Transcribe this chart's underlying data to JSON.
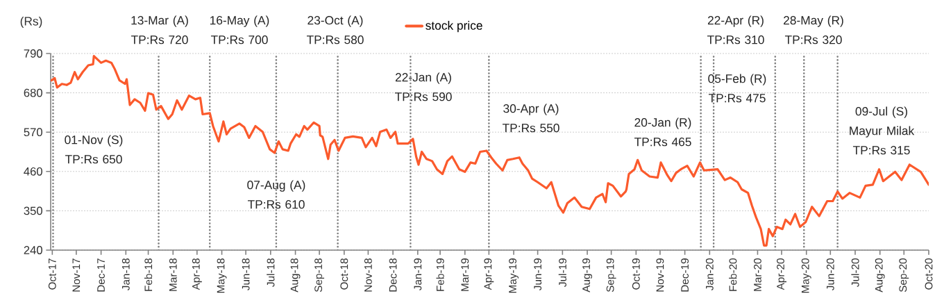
{
  "chart_data": {
    "type": "line",
    "ylabel": "(Rs)",
    "xlim": [
      "2017-10-29",
      "2020-10-31"
    ],
    "xticks": [
      {
        "value": "2017-10-31",
        "label": "Oct-17"
      },
      {
        "value": "2017-11-30",
        "label": "Nov-17"
      },
      {
        "value": "2017-12-31",
        "label": "Dec-17"
      },
      {
        "value": "2018-01-31",
        "label": "Jan-18"
      },
      {
        "value": "2018-02-28",
        "label": "Feb-18"
      },
      {
        "value": "2018-03-31",
        "label": "Mar-18"
      },
      {
        "value": "2018-04-30",
        "label": "Apr-18"
      },
      {
        "value": "2018-05-31",
        "label": "May-18"
      },
      {
        "value": "2018-06-30",
        "label": "Jun-18"
      },
      {
        "value": "2018-07-31",
        "label": "Jul-18"
      },
      {
        "value": "2018-08-31",
        "label": "Aug-18"
      },
      {
        "value": "2018-09-30",
        "label": "Sep-18"
      },
      {
        "value": "2018-10-31",
        "label": "Oct-18"
      },
      {
        "value": "2018-11-30",
        "label": "Nov-18"
      },
      {
        "value": "2018-12-31",
        "label": "Dec-18"
      },
      {
        "value": "2019-01-31",
        "label": "Jan-19"
      },
      {
        "value": "2019-02-28",
        "label": "Feb-19"
      },
      {
        "value": "2019-03-31",
        "label": "Mar-19"
      },
      {
        "value": "2019-04-30",
        "label": "Apr-19"
      },
      {
        "value": "2019-05-31",
        "label": "May-19"
      },
      {
        "value": "2019-06-30",
        "label": "Jun-19"
      },
      {
        "value": "2019-07-31",
        "label": "Jul-19"
      },
      {
        "value": "2019-08-31",
        "label": "Aug-19"
      },
      {
        "value": "2019-09-30",
        "label": "Sep-19"
      },
      {
        "value": "2019-10-31",
        "label": "Oct-19"
      },
      {
        "value": "2019-11-30",
        "label": "Nov-19"
      },
      {
        "value": "2019-12-31",
        "label": "Dec-19"
      },
      {
        "value": "2020-01-31",
        "label": "Jan-20"
      },
      {
        "value": "2020-02-29",
        "label": "Feb-20"
      },
      {
        "value": "2020-03-31",
        "label": "Mar-20"
      },
      {
        "value": "2020-04-30",
        "label": "Apr-20"
      },
      {
        "value": "2020-05-31",
        "label": "May-20"
      },
      {
        "value": "2020-06-30",
        "label": "Jun-20"
      },
      {
        "value": "2020-07-31",
        "label": "Jul-20"
      },
      {
        "value": "2020-08-31",
        "label": "Aug-20"
      },
      {
        "value": "2020-09-30",
        "label": "Sep-20"
      },
      {
        "value": "2020-10-31",
        "label": "Oct-20"
      }
    ],
    "ylim": [
      240,
      790
    ],
    "yticks": [
      240,
      350,
      460,
      570,
      680,
      790
    ],
    "grid": "y",
    "legend": "top",
    "x": [
      "2017-10-30",
      "2017-11-03",
      "2017-11-06",
      "2017-11-12",
      "2017-11-18",
      "2017-11-23",
      "2017-11-28",
      "2017-12-02",
      "2017-12-08",
      "2017-12-15",
      "2017-12-21",
      "2017-12-22",
      "2017-12-31",
      "2018-01-06",
      "2018-01-13",
      "2018-01-17",
      "2018-01-23",
      "2018-01-30",
      "2018-02-01",
      "2018-02-05",
      "2018-02-11",
      "2018-02-18",
      "2018-02-24",
      "2018-02-28",
      "2018-03-06",
      "2018-03-10",
      "2018-03-16",
      "2018-03-25",
      "2018-03-30",
      "2018-04-05",
      "2018-04-11",
      "2018-04-20",
      "2018-04-28",
      "2018-05-04",
      "2018-05-07",
      "2018-05-16",
      "2018-05-20",
      "2018-05-27",
      "2018-06-02",
      "2018-06-06",
      "2018-06-11",
      "2018-06-22",
      "2018-06-28",
      "2018-07-04",
      "2018-07-12",
      "2018-07-21",
      "2018-07-30",
      "2018-08-05",
      "2018-08-10",
      "2018-08-15",
      "2018-08-22",
      "2018-08-25",
      "2018-09-01",
      "2018-09-05",
      "2018-09-11",
      "2018-09-15",
      "2018-09-23",
      "2018-09-30",
      "2018-10-01",
      "2018-10-04",
      "2018-10-11",
      "2018-10-14",
      "2018-10-19",
      "2018-10-24",
      "2018-11-01",
      "2018-11-11",
      "2018-11-22",
      "2018-11-27",
      "2018-12-05",
      "2018-12-10",
      "2018-12-15",
      "2018-12-23",
      "2018-12-28",
      "2019-01-03",
      "2019-01-06",
      "2019-01-19",
      "2019-01-25",
      "2019-01-29",
      "2019-02-01",
      "2019-02-05",
      "2019-02-11",
      "2019-02-18",
      "2019-02-24",
      "2019-03-03",
      "2019-03-09",
      "2019-03-15",
      "2019-03-24",
      "2019-03-31",
      "2019-04-07",
      "2019-04-13",
      "2019-04-19",
      "2019-04-27",
      "2019-05-03",
      "2019-05-09",
      "2019-05-17",
      "2019-05-23",
      "2019-05-30",
      "2019-06-07",
      "2019-06-11",
      "2019-06-18",
      "2019-06-23",
      "2019-06-30",
      "2019-07-11",
      "2019-07-17",
      "2019-07-26",
      "2019-08-01",
      "2019-08-06",
      "2019-08-15",
      "2019-08-24",
      "2019-09-03",
      "2019-09-11",
      "2019-09-19",
      "2019-09-23",
      "2019-09-26",
      "2019-10-02",
      "2019-10-12",
      "2019-10-18",
      "2019-10-19",
      "2019-10-22",
      "2019-10-29",
      "2019-11-02",
      "2019-11-07",
      "2019-11-17",
      "2019-11-27",
      "2019-12-01",
      "2019-12-09",
      "2019-12-14",
      "2019-12-20",
      "2019-12-26",
      "2020-01-03",
      "2020-01-11",
      "2020-01-19",
      "2020-01-24",
      "2020-02-10",
      "2020-02-19",
      "2020-02-26",
      "2020-03-06",
      "2020-03-11",
      "2020-03-19",
      "2020-03-24",
      "2020-03-29",
      "2020-04-04",
      "2020-04-08",
      "2020-04-11",
      "2020-04-14",
      "2020-04-19",
      "2020-04-24",
      "2020-05-01",
      "2020-05-05",
      "2020-05-11",
      "2020-05-17",
      "2020-05-23",
      "2020-05-30",
      "2020-06-07",
      "2020-06-16",
      "2020-06-26",
      "2020-07-03",
      "2020-07-09",
      "2020-07-15",
      "2020-07-24",
      "2020-08-06",
      "2020-08-13",
      "2020-08-22",
      "2020-08-30",
      "2020-09-04",
      "2020-09-19",
      "2020-09-27",
      "2020-10-07",
      "2020-10-21",
      "2020-10-31"
    ],
    "series": [
      {
        "name": "stock price",
        "color": "#fb5a2c",
        "values": [
          715,
          721,
          695,
          705,
          702,
          708,
          738,
          718,
          738,
          757,
          760,
          783,
          764,
          770,
          764,
          747,
          715,
          705,
          718,
          646,
          662,
          652,
          630,
          679,
          675,
          633,
          643,
          607,
          620,
          659,
          633,
          672,
          662,
          666,
          620,
          623,
          587,
          544,
          600,
          564,
          580,
          594,
          584,
          554,
          587,
          571,
          522,
          512,
          544,
          522,
          518,
          538,
          564,
          557,
          587,
          577,
          597,
          587,
          561,
          557,
          495,
          535,
          548,
          518,
          554,
          558,
          554,
          528,
          554,
          531,
          571,
          577,
          554,
          571,
          538,
          538,
          551,
          502,
          479,
          515,
          495,
          489,
          466,
          453,
          489,
          502,
          466,
          459,
          485,
          482,
          515,
          518,
          499,
          482,
          463,
          492,
          495,
          499,
          482,
          463,
          440,
          430,
          413,
          430,
          364,
          345,
          371,
          387,
          361,
          355,
          387,
          397,
          374,
          427,
          420,
          390,
          404,
          410,
          453,
          466,
          492,
          463,
          446,
          443,
          485,
          450,
          433,
          456,
          466,
          476,
          446,
          485,
          463,
          466,
          436,
          443,
          430,
          410,
          400,
          364,
          332,
          299,
          253,
          253,
          299,
          279,
          305,
          299,
          325,
          312,
          341,
          305,
          318,
          361,
          335,
          377,
          377,
          404,
          384,
          400,
          387,
          420,
          423,
          466,
          433,
          459,
          436,
          479,
          459,
          423
        ]
      }
    ],
    "ref_lines": [
      {
        "axis": "x",
        "value": "2017-11-01",
        "label": "01-Nov (S) TP:Rs 650",
        "color": "#808080",
        "line_style": "dotted"
      },
      {
        "axis": "x",
        "value": "2018-03-13",
        "label": "13-Mar (A) TP:Rs 720",
        "color": "#808080",
        "line_style": "dotted"
      },
      {
        "axis": "x",
        "value": "2018-05-16",
        "label": "16-May (A) TP:Rs 700",
        "color": "#808080",
        "line_style": "dotted"
      },
      {
        "axis": "x",
        "value": "2018-08-07",
        "label": "07-Aug (A) TP:Rs 610",
        "color": "#808080",
        "line_style": "dotted"
      },
      {
        "axis": "x",
        "value": "2018-10-23",
        "label": "23-Oct (A) TP:Rs 580",
        "color": "#808080",
        "line_style": "dotted"
      },
      {
        "axis": "x",
        "value": "2019-01-22",
        "label": "22-Jan (A) TP:Rs 590",
        "color": "#808080",
        "line_style": "dotted"
      },
      {
        "axis": "x",
        "value": "2019-04-30",
        "label": "30-Apr (A) TP:Rs 550",
        "color": "#808080",
        "line_style": "dotted"
      },
      {
        "axis": "x",
        "value": "2020-01-20",
        "label": "20-Jan (R) TP:Rs 465",
        "color": "#808080",
        "line_style": "dotted"
      },
      {
        "axis": "x",
        "value": "2020-02-05",
        "label": "05-Feb (R) TP:Rs 475",
        "color": "#808080",
        "line_style": "dotted"
      },
      {
        "axis": "x",
        "value": "2020-04-22",
        "label": "22-Apr (R) TP:Rs 310",
        "color": "#808080",
        "line_style": "dotted"
      },
      {
        "axis": "x",
        "value": "2020-05-28",
        "label": "28-May (R) TP:Rs 320",
        "color": "#808080",
        "line_style": "dotted"
      },
      {
        "axis": "x",
        "value": "2020-07-09",
        "label": "09-Jul (S) Mayur Milak TP:Rs 315",
        "color": "#808080",
        "line_style": "dotted"
      }
    ]
  }
}
